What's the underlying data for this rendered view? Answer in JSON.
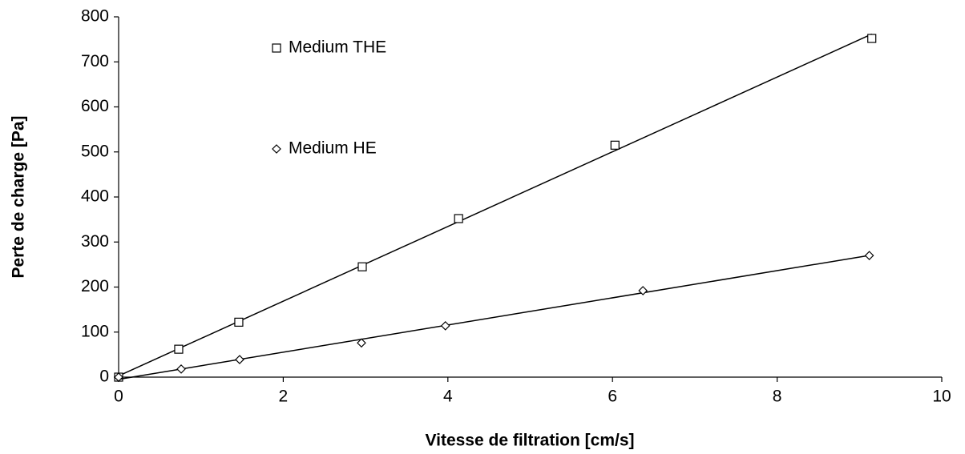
{
  "chart_data": {
    "type": "scatter",
    "xlabel": "Vitesse de filtration  [cm/s]",
    "ylabel": "Perte de charge [Pa]",
    "xlim": [
      0,
      10
    ],
    "xticks": [
      0,
      2,
      4,
      6,
      8,
      10
    ],
    "ylim": [
      0,
      800
    ],
    "yticks": [
      0,
      100,
      200,
      300,
      400,
      500,
      600,
      700,
      800
    ],
    "trendline": true,
    "series": [
      {
        "name": "Medium THE",
        "marker": "square",
        "color": "#000000",
        "x": [
          0,
          0.73,
          1.46,
          2.96,
          4.13,
          6.03,
          9.15
        ],
        "values": [
          0,
          62,
          122,
          245,
          352,
          515,
          752
        ]
      },
      {
        "name": "Medium HE",
        "marker": "diamond",
        "color": "#000000",
        "x": [
          0,
          0.76,
          1.47,
          2.95,
          3.97,
          6.37,
          9.12
        ],
        "values": [
          0,
          18,
          39,
          76,
          114,
          192,
          270
        ]
      }
    ]
  }
}
